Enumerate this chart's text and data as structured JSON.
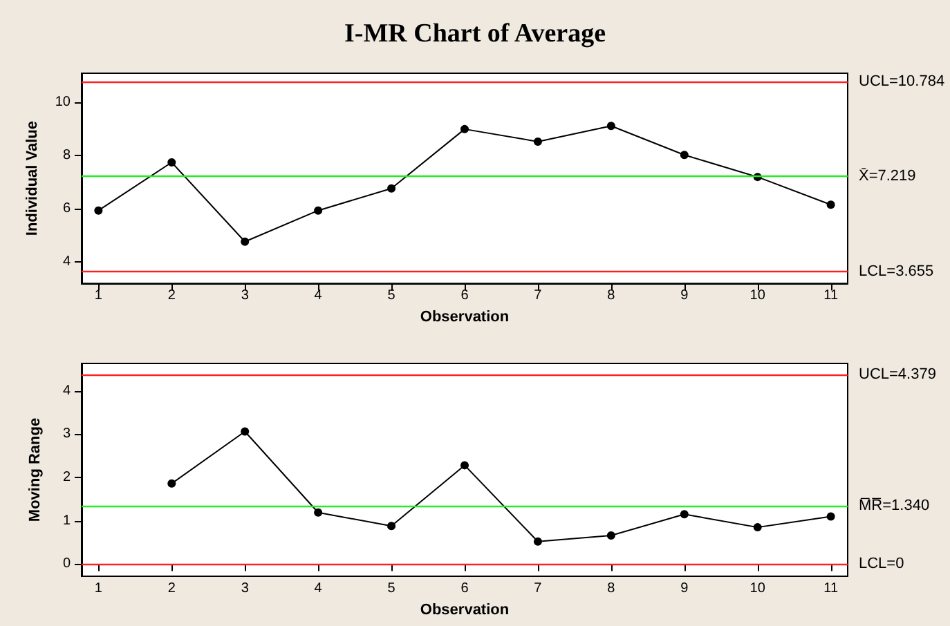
{
  "chart_data": [
    {
      "type": "line",
      "title": "I-MR Chart of Average",
      "xlabel": "Observation",
      "ylabel": "Individual Value",
      "x": [
        1,
        2,
        3,
        4,
        5,
        6,
        7,
        8,
        9,
        10,
        11
      ],
      "series": [
        {
          "color": "#000000",
          "values": [
            5.94,
            7.75,
            4.77,
            5.94,
            6.77,
            9.0,
            8.53,
            9.12,
            8.03,
            7.2,
            6.16
          ]
        }
      ],
      "xlim": [
        0.77,
        11.23
      ],
      "xticks": [
        1,
        2,
        3,
        4,
        5,
        6,
        7,
        8,
        9,
        10,
        11
      ],
      "ylim": [
        3.2,
        11.1
      ],
      "yticks": [
        4,
        6,
        8,
        10
      ],
      "marker": "circle",
      "line_style": "solid",
      "ref_lines": [
        {
          "axis": "y",
          "value": 10.784,
          "label": "UCL=10.784",
          "color": "#ff2020"
        },
        {
          "axis": "y",
          "value": 7.219,
          "label": "X̄=7.219",
          "color": "#22ee22"
        },
        {
          "axis": "y",
          "value": 3.655,
          "label": "LCL=3.655",
          "color": "#ff2020"
        }
      ]
    },
    {
      "type": "line",
      "xlabel": "Observation",
      "ylabel": "Moving Range",
      "series": [
        {
          "color": "#000000",
          "x": [
            2,
            3,
            4,
            5,
            6,
            7,
            8,
            9,
            10,
            11
          ],
          "values": [
            1.86,
            3.06,
            1.19,
            0.88,
            2.28,
            0.52,
            0.66,
            1.15,
            0.85,
            1.1
          ]
        }
      ],
      "xlim": [
        0.77,
        11.23
      ],
      "xticks": [
        1,
        2,
        3,
        4,
        5,
        6,
        7,
        8,
        9,
        10,
        11
      ],
      "ylim": [
        -0.28,
        4.63
      ],
      "yticks": [
        0,
        1,
        2,
        3,
        4
      ],
      "marker": "circle",
      "line_style": "solid",
      "ref_lines": [
        {
          "axis": "y",
          "value": 4.379,
          "label": "UCL=4.379",
          "color": "#ff2020"
        },
        {
          "axis": "y",
          "value": 1.34,
          "label": "M̅R̅=1.340",
          "color": "#22ee22"
        },
        {
          "axis": "y",
          "value": 0,
          "label": "LCL=0",
          "color": "#ff2020"
        }
      ]
    }
  ]
}
